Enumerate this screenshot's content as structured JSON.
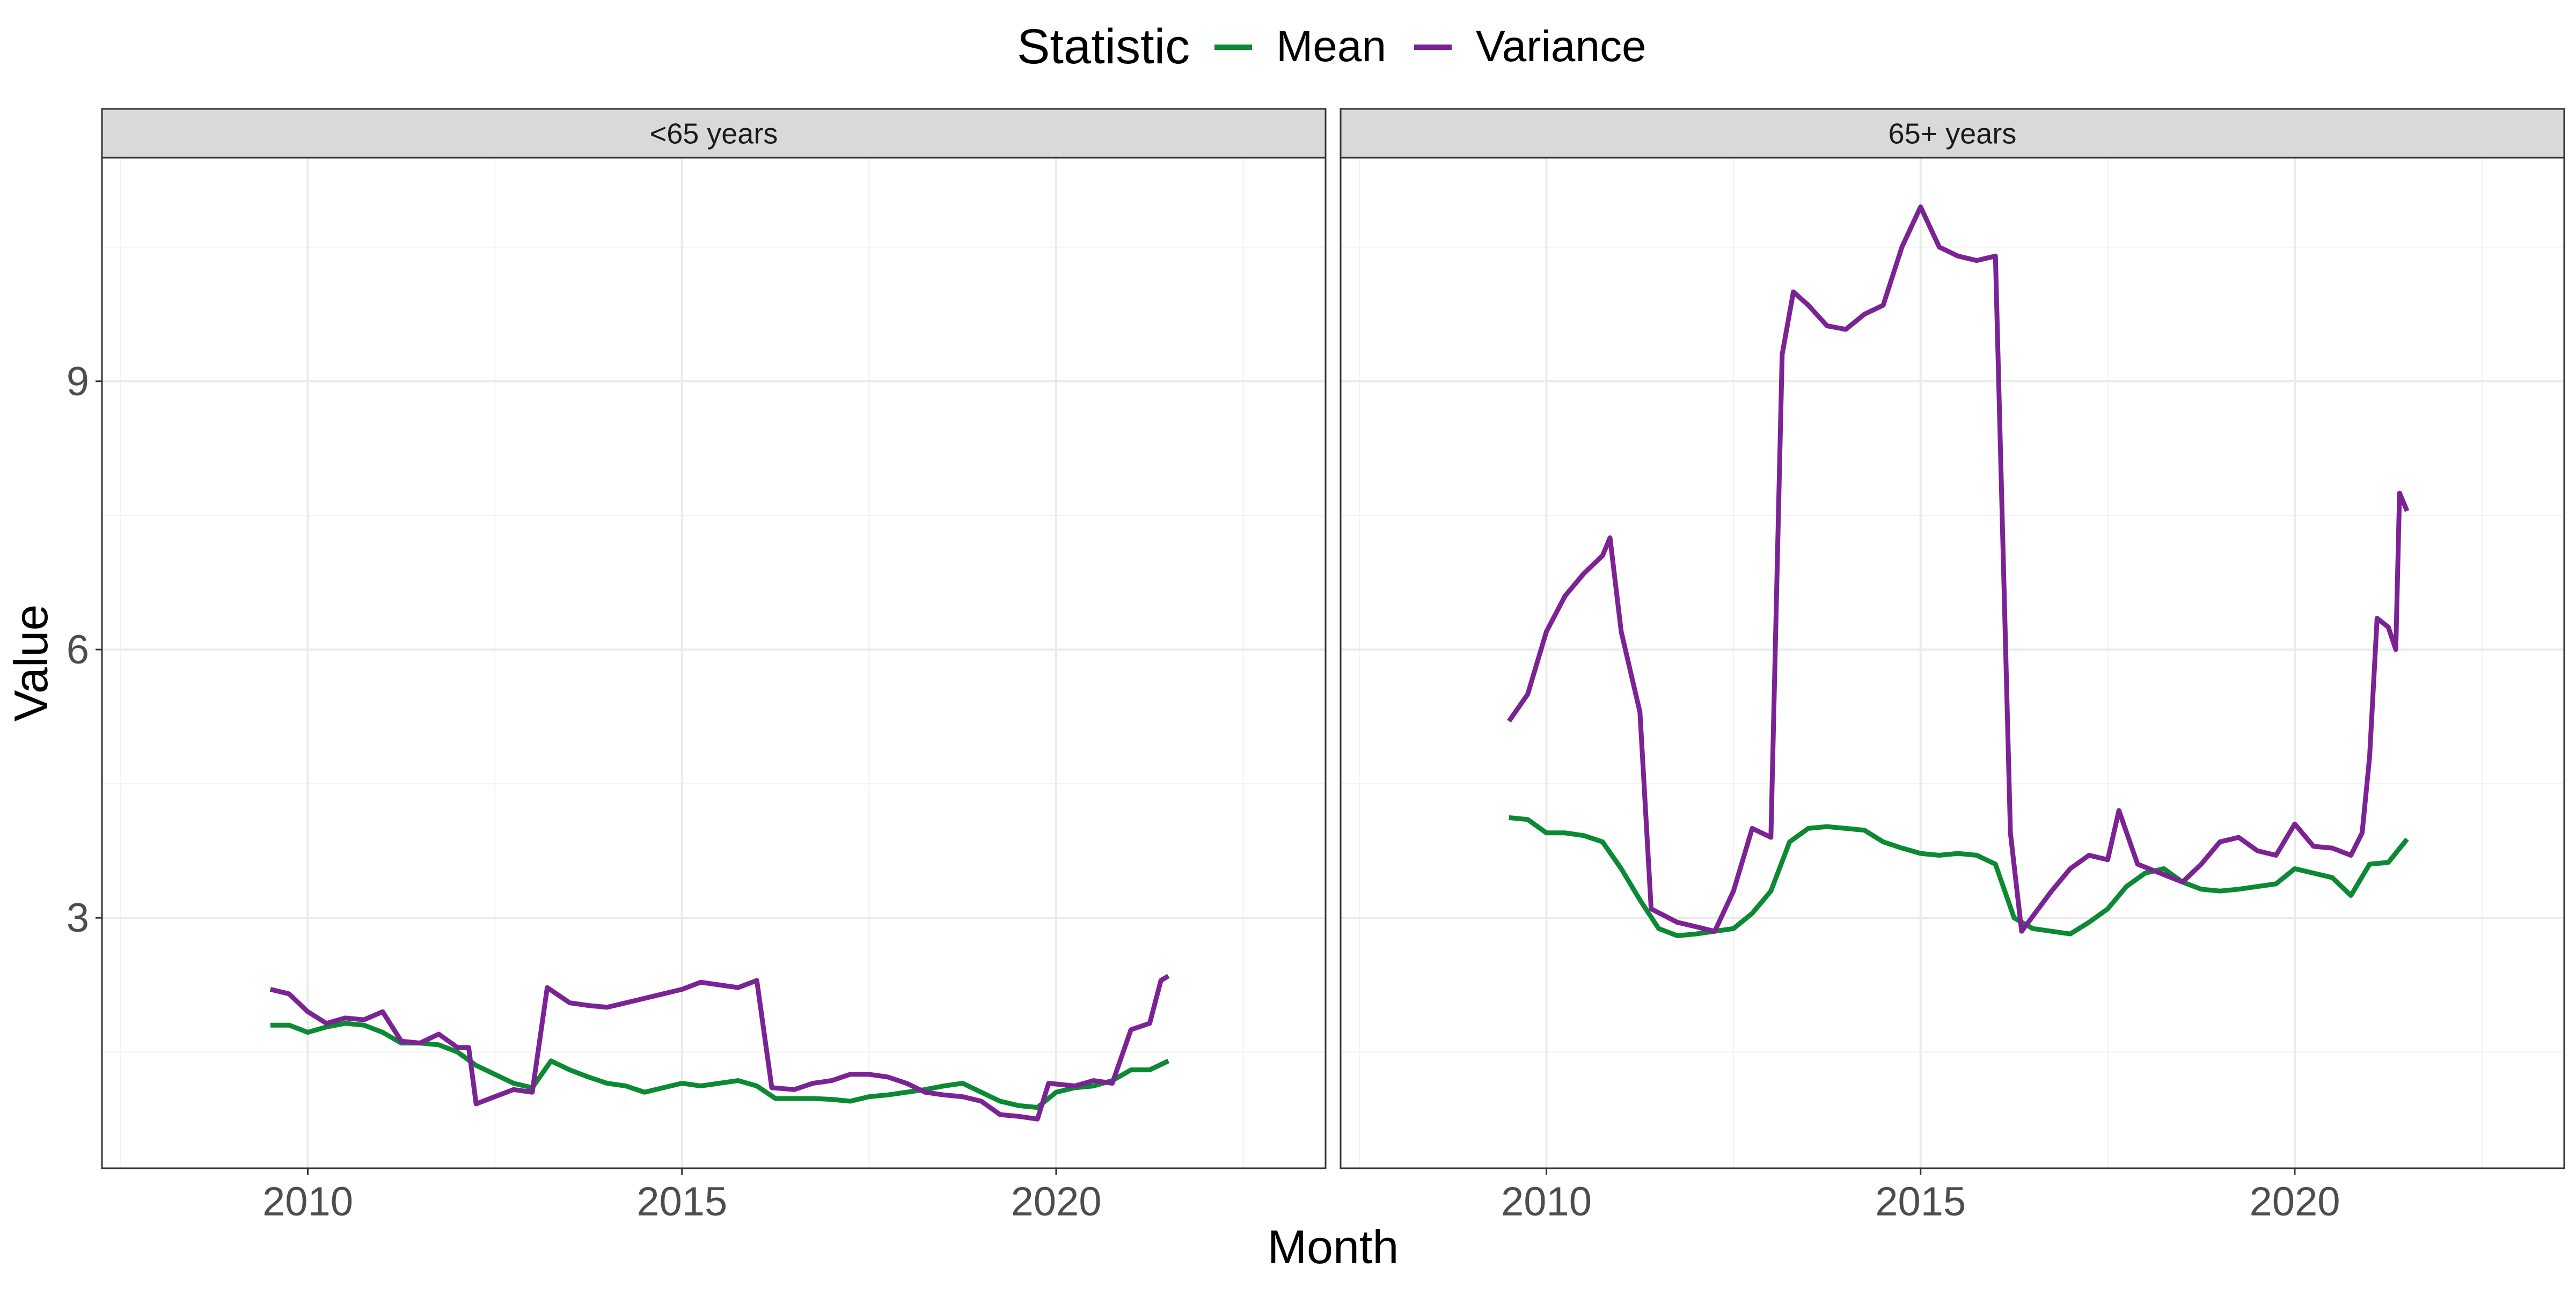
{
  "legend": {
    "title": "Statistic",
    "items": [
      {
        "label": "Mean",
        "color": "#0b8a33"
      },
      {
        "label": "Variance",
        "color": "#7b2394"
      }
    ]
  },
  "axes": {
    "xlabel": "Month",
    "ylabel": "Value",
    "xticks": [
      "2010",
      "2015",
      "2020"
    ],
    "yticks": [
      "3",
      "6",
      "9"
    ]
  },
  "chart_data": {
    "type": "line",
    "xlabel": "Month",
    "ylabel": "Value",
    "xlim": [
      2007.25,
      2023.6
    ],
    "ylim": [
      0.2,
      11.5
    ],
    "x_breaks": [
      2010,
      2015,
      2020
    ],
    "y_breaks": [
      3,
      6,
      9
    ],
    "grid": true,
    "legend_position": "top",
    "legend_title": "Statistic",
    "panels": [
      {
        "strip": "<65 years",
        "series": [
          {
            "name": "Mean",
            "color": "#0b8a33",
            "points": [
              [
                2009.5,
                1.8
              ],
              [
                2009.75,
                1.8
              ],
              [
                2010.0,
                1.72
              ],
              [
                2010.25,
                1.78
              ],
              [
                2010.5,
                1.82
              ],
              [
                2010.75,
                1.8
              ],
              [
                2011.0,
                1.72
              ],
              [
                2011.25,
                1.6
              ],
              [
                2011.5,
                1.6
              ],
              [
                2011.75,
                1.58
              ],
              [
                2012.0,
                1.5
              ],
              [
                2012.25,
                1.35
              ],
              [
                2012.5,
                1.25
              ],
              [
                2012.75,
                1.15
              ],
              [
                2013.0,
                1.1
              ],
              [
                2013.25,
                1.4
              ],
              [
                2013.5,
                1.3
              ],
              [
                2013.75,
                1.22
              ],
              [
                2014.0,
                1.15
              ],
              [
                2014.25,
                1.12
              ],
              [
                2014.5,
                1.05
              ],
              [
                2014.75,
                1.1
              ],
              [
                2015.0,
                1.15
              ],
              [
                2015.25,
                1.12
              ],
              [
                2015.5,
                1.15
              ],
              [
                2015.75,
                1.18
              ],
              [
                2016.0,
                1.12
              ],
              [
                2016.25,
                0.98
              ],
              [
                2016.5,
                0.98
              ],
              [
                2016.75,
                0.98
              ],
              [
                2017.0,
                0.97
              ],
              [
                2017.25,
                0.95
              ],
              [
                2017.5,
                1.0
              ],
              [
                2017.75,
                1.02
              ],
              [
                2018.0,
                1.05
              ],
              [
                2018.25,
                1.08
              ],
              [
                2018.5,
                1.12
              ],
              [
                2018.75,
                1.15
              ],
              [
                2019.0,
                1.05
              ],
              [
                2019.25,
                0.95
              ],
              [
                2019.5,
                0.9
              ],
              [
                2019.75,
                0.88
              ],
              [
                2020.0,
                1.05
              ],
              [
                2020.25,
                1.1
              ],
              [
                2020.5,
                1.12
              ],
              [
                2020.75,
                1.18
              ],
              [
                2021.0,
                1.3
              ],
              [
                2021.25,
                1.3
              ],
              [
                2021.5,
                1.4
              ]
            ]
          },
          {
            "name": "Variance",
            "color": "#7b2394",
            "points": [
              [
                2009.5,
                2.2
              ],
              [
                2009.75,
                2.15
              ],
              [
                2010.0,
                1.95
              ],
              [
                2010.25,
                1.82
              ],
              [
                2010.5,
                1.88
              ],
              [
                2010.75,
                1.86
              ],
              [
                2011.0,
                1.95
              ],
              [
                2011.25,
                1.62
              ],
              [
                2011.5,
                1.6
              ],
              [
                2011.75,
                1.7
              ],
              [
                2012.0,
                1.55
              ],
              [
                2012.15,
                1.55
              ],
              [
                2012.25,
                0.92
              ],
              [
                2012.5,
                1.0
              ],
              [
                2012.75,
                1.08
              ],
              [
                2013.0,
                1.05
              ],
              [
                2013.2,
                2.22
              ],
              [
                2013.5,
                2.05
              ],
              [
                2013.75,
                2.02
              ],
              [
                2014.0,
                2.0
              ],
              [
                2014.25,
                2.05
              ],
              [
                2014.5,
                2.1
              ],
              [
                2014.75,
                2.15
              ],
              [
                2015.0,
                2.2
              ],
              [
                2015.25,
                2.28
              ],
              [
                2015.5,
                2.25
              ],
              [
                2015.75,
                2.22
              ],
              [
                2016.0,
                2.3
              ],
              [
                2016.2,
                1.1
              ],
              [
                2016.5,
                1.08
              ],
              [
                2016.75,
                1.15
              ],
              [
                2017.0,
                1.18
              ],
              [
                2017.25,
                1.25
              ],
              [
                2017.5,
                1.25
              ],
              [
                2017.75,
                1.22
              ],
              [
                2018.0,
                1.15
              ],
              [
                2018.25,
                1.05
              ],
              [
                2018.5,
                1.02
              ],
              [
                2018.75,
                1.0
              ],
              [
                2019.0,
                0.95
              ],
              [
                2019.25,
                0.8
              ],
              [
                2019.5,
                0.78
              ],
              [
                2019.75,
                0.75
              ],
              [
                2019.9,
                1.15
              ],
              [
                2020.25,
                1.12
              ],
              [
                2020.5,
                1.18
              ],
              [
                2020.75,
                1.15
              ],
              [
                2021.0,
                1.75
              ],
              [
                2021.25,
                1.82
              ],
              [
                2021.4,
                2.3
              ],
              [
                2021.5,
                2.35
              ]
            ]
          }
        ]
      },
      {
        "strip": "65+ years",
        "series": [
          {
            "name": "Mean",
            "color": "#0b8a33",
            "points": [
              [
                2009.5,
                4.12
              ],
              [
                2009.75,
                4.1
              ],
              [
                2010.0,
                3.95
              ],
              [
                2010.25,
                3.95
              ],
              [
                2010.5,
                3.92
              ],
              [
                2010.75,
                3.85
              ],
              [
                2011.0,
                3.55
              ],
              [
                2011.25,
                3.2
              ],
              [
                2011.5,
                2.88
              ],
              [
                2011.75,
                2.8
              ],
              [
                2012.0,
                2.82
              ],
              [
                2012.25,
                2.85
              ],
              [
                2012.5,
                2.88
              ],
              [
                2012.75,
                3.05
              ],
              [
                2013.0,
                3.3
              ],
              [
                2013.25,
                3.85
              ],
              [
                2013.5,
                4.0
              ],
              [
                2013.75,
                4.02
              ],
              [
                2014.0,
                4.0
              ],
              [
                2014.25,
                3.98
              ],
              [
                2014.5,
                3.85
              ],
              [
                2014.75,
                3.78
              ],
              [
                2015.0,
                3.72
              ],
              [
                2015.25,
                3.7
              ],
              [
                2015.5,
                3.72
              ],
              [
                2015.75,
                3.7
              ],
              [
                2016.0,
                3.6
              ],
              [
                2016.25,
                3.0
              ],
              [
                2016.5,
                2.88
              ],
              [
                2016.75,
                2.85
              ],
              [
                2017.0,
                2.82
              ],
              [
                2017.25,
                2.95
              ],
              [
                2017.5,
                3.1
              ],
              [
                2017.75,
                3.35
              ],
              [
                2018.0,
                3.5
              ],
              [
                2018.25,
                3.55
              ],
              [
                2018.5,
                3.4
              ],
              [
                2018.75,
                3.32
              ],
              [
                2019.0,
                3.3
              ],
              [
                2019.25,
                3.32
              ],
              [
                2019.5,
                3.35
              ],
              [
                2019.75,
                3.38
              ],
              [
                2020.0,
                3.55
              ],
              [
                2020.25,
                3.5
              ],
              [
                2020.5,
                3.45
              ],
              [
                2020.75,
                3.25
              ],
              [
                2021.0,
                3.6
              ],
              [
                2021.25,
                3.62
              ],
              [
                2021.5,
                3.88
              ]
            ]
          },
          {
            "name": "Variance",
            "color": "#7b2394",
            "points": [
              [
                2009.5,
                5.2
              ],
              [
                2009.75,
                5.5
              ],
              [
                2010.0,
                6.2
              ],
              [
                2010.25,
                6.6
              ],
              [
                2010.5,
                6.85
              ],
              [
                2010.75,
                7.05
              ],
              [
                2010.85,
                7.25
              ],
              [
                2011.0,
                6.2
              ],
              [
                2011.25,
                5.3
              ],
              [
                2011.4,
                3.1
              ],
              [
                2011.75,
                2.95
              ],
              [
                2012.0,
                2.9
              ],
              [
                2012.25,
                2.85
              ],
              [
                2012.5,
                3.3
              ],
              [
                2012.75,
                4.0
              ],
              [
                2013.0,
                3.9
              ],
              [
                2013.15,
                9.3
              ],
              [
                2013.3,
                10.0
              ],
              [
                2013.5,
                9.85
              ],
              [
                2013.75,
                9.62
              ],
              [
                2014.0,
                9.58
              ],
              [
                2014.25,
                9.75
              ],
              [
                2014.5,
                9.85
              ],
              [
                2014.75,
                10.5
              ],
              [
                2015.0,
                10.95
              ],
              [
                2015.25,
                10.5
              ],
              [
                2015.5,
                10.4
              ],
              [
                2015.75,
                10.35
              ],
              [
                2016.0,
                10.4
              ],
              [
                2016.2,
                3.95
              ],
              [
                2016.35,
                2.85
              ],
              [
                2016.75,
                3.3
              ],
              [
                2017.0,
                3.55
              ],
              [
                2017.25,
                3.7
              ],
              [
                2017.5,
                3.65
              ],
              [
                2017.65,
                4.2
              ],
              [
                2017.9,
                3.6
              ],
              [
                2018.2,
                3.5
              ],
              [
                2018.5,
                3.4
              ],
              [
                2018.75,
                3.6
              ],
              [
                2019.0,
                3.85
              ],
              [
                2019.25,
                3.9
              ],
              [
                2019.5,
                3.75
              ],
              [
                2019.75,
                3.7
              ],
              [
                2020.0,
                4.05
              ],
              [
                2020.25,
                3.8
              ],
              [
                2020.5,
                3.78
              ],
              [
                2020.75,
                3.7
              ],
              [
                2020.9,
                3.95
              ],
              [
                2021.0,
                4.8
              ],
              [
                2021.1,
                6.35
              ],
              [
                2021.25,
                6.25
              ],
              [
                2021.35,
                6.0
              ],
              [
                2021.4,
                7.75
              ],
              [
                2021.5,
                7.55
              ]
            ]
          }
        ]
      }
    ]
  }
}
